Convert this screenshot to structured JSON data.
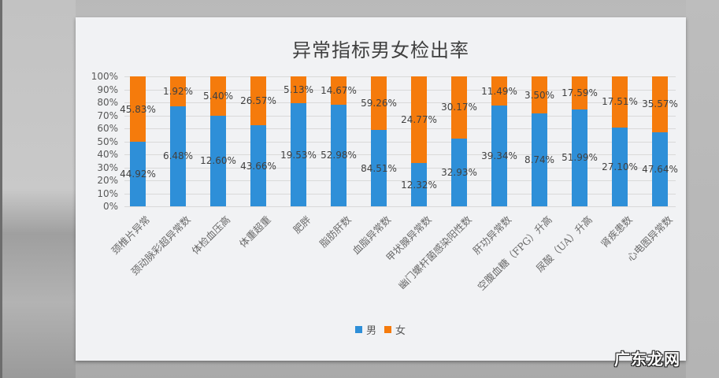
{
  "chart_data": {
    "type": "bar",
    "stacked": true,
    "normalized_100pct": true,
    "title": "异常指标男女检出率",
    "xlabel": "",
    "ylabel": "",
    "ylim": [
      0,
      100
    ],
    "yticks": [
      "0%",
      "10%",
      "20%",
      "30%",
      "40%",
      "50%",
      "60%",
      "70%",
      "80%",
      "90%",
      "100%"
    ],
    "grid": true,
    "legend_position": "bottom",
    "categories": [
      "颈椎片异常",
      "颈动脉彩超异常数",
      "体检血压高",
      "体重超重",
      "肥胖",
      "脂肪肝数",
      "血脂异常数",
      "甲状腺异常数",
      "幽门螺杆菌感染阳性数",
      "肝功异常数",
      "空腹血糖（FPG）升高",
      "尿酸（UA）升高",
      "肾疾患数",
      "心电图异常数"
    ],
    "series": [
      {
        "name": "男",
        "color": "#2e8fd8",
        "values": [
          44.92,
          6.48,
          12.6,
          43.66,
          19.53,
          52.98,
          84.51,
          12.32,
          32.93,
          39.34,
          8.74,
          51.99,
          27.1,
          47.64
        ],
        "labels": [
          "44.92%",
          "6.48%",
          "12.60%",
          "43.66%",
          "19.53%",
          "52.98%",
          "84.51%",
          "12.32%",
          "32.93%",
          "39.34%",
          "8.74%",
          "51.99%",
          "27.10%",
          "47.64%"
        ]
      },
      {
        "name": "女",
        "color": "#f57b0c",
        "values": [
          45.83,
          1.92,
          5.4,
          26.57,
          5.13,
          14.67,
          59.26,
          24.77,
          30.17,
          11.49,
          3.5,
          17.59,
          17.51,
          35.57
        ],
        "labels": [
          "45.83%",
          "1.92%",
          "5.40%",
          "26.57%",
          "5.13%",
          "14.67%",
          "59.26%",
          "24.77%",
          "30.17%",
          "11.49%",
          "3.50%",
          "17.59%",
          "17.51%",
          "35.57%"
        ]
      }
    ]
  },
  "legend": {
    "male": "男",
    "female": "女"
  },
  "watermark": "广东龙网"
}
